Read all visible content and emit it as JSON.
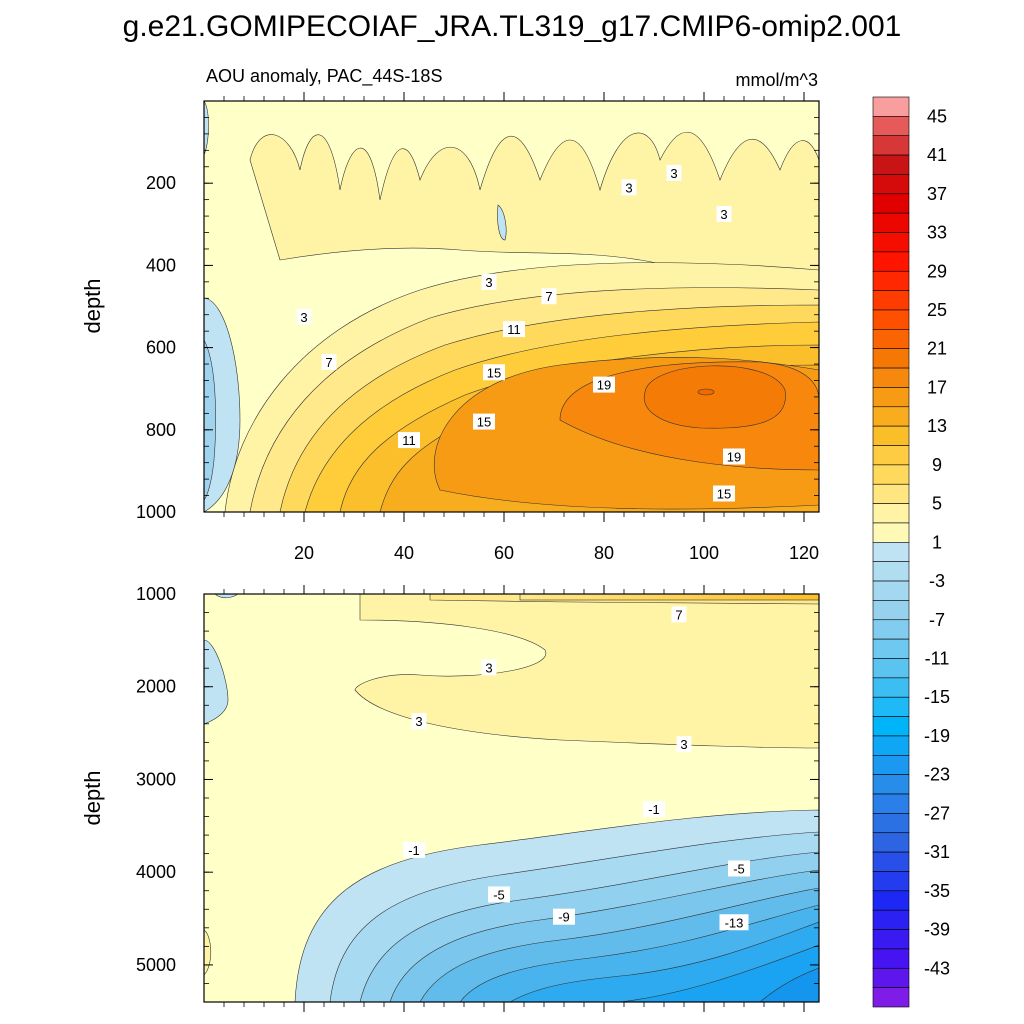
{
  "title": "g.e21.GOMIPECOIAF_JRA.TL319_g17.CMIP6-omip2.001",
  "chart_data": {
    "type": "contour",
    "variable": "AOU anomaly",
    "region": "PAC_44S-18S",
    "subtitle_left": "AOU anomaly, PAC_44S-18S",
    "units": "mmol/m^3",
    "colorbar": {
      "levels": [
        -45,
        -43,
        -41,
        -39,
        -37,
        -35,
        -33,
        -31,
        -29,
        -27,
        -25,
        -23,
        -21,
        -19,
        -17,
        -15,
        -13,
        -11,
        -9,
        -7,
        -5,
        -3,
        -1,
        1,
        3,
        5,
        7,
        9,
        11,
        13,
        15,
        17,
        19,
        21,
        23,
        25,
        27,
        29,
        31,
        33,
        35,
        37,
        39,
        41,
        43,
        45
      ],
      "tick_labels": [
        "45",
        "41",
        "37",
        "33",
        "29",
        "25",
        "21",
        "17",
        "13",
        "9",
        "5",
        "1",
        "-3",
        "-7",
        "-11",
        "-15",
        "-19",
        "-23",
        "-27",
        "-31",
        "-35",
        "-39",
        "-43"
      ]
    },
    "panels": [
      {
        "name": "upper",
        "ylabel": "depth",
        "ylim": [
          0,
          1000
        ],
        "y_ticks": [
          "200",
          "400",
          "600",
          "800",
          "1000"
        ],
        "x_ticks": [
          "20",
          "40",
          "60",
          "80",
          "100",
          "120"
        ],
        "xlim": [
          0,
          123
        ],
        "contour_labels": [
          {
            "text": "3",
            "x": 85,
            "depth": 210
          },
          {
            "text": "3",
            "x": 94,
            "depth": 175
          },
          {
            "text": "3",
            "x": 104,
            "depth": 275
          },
          {
            "text": "3",
            "x": 57,
            "depth": 440
          },
          {
            "text": "7",
            "x": 69,
            "depth": 475
          },
          {
            "text": "3",
            "x": 20,
            "depth": 525
          },
          {
            "text": "11",
            "x": 62,
            "depth": 555
          },
          {
            "text": "7",
            "x": 25,
            "depth": 635
          },
          {
            "text": "15",
            "x": 58,
            "depth": 660
          },
          {
            "text": "19",
            "x": 80,
            "depth": 690
          },
          {
            "text": "15",
            "x": 56,
            "depth": 780
          },
          {
            "text": "11",
            "x": 41,
            "depth": 825
          },
          {
            "text": "19",
            "x": 106,
            "depth": 865
          },
          {
            "text": "15",
            "x": 104,
            "depth": 955
          }
        ]
      },
      {
        "name": "lower",
        "ylabel": "depth",
        "ylim": [
          1000,
          5400
        ],
        "y_ticks": [
          "1000",
          "2000",
          "3000",
          "4000",
          "5000"
        ],
        "xlim": [
          0,
          123
        ],
        "contour_labels": [
          {
            "text": "7",
            "x": 95,
            "depth": 1220
          },
          {
            "text": "3",
            "x": 57,
            "depth": 1790
          },
          {
            "text": "3",
            "x": 43,
            "depth": 2370
          },
          {
            "text": "3",
            "x": 96,
            "depth": 2620
          },
          {
            "text": "-1",
            "x": 90,
            "depth": 3320
          },
          {
            "text": "-1",
            "x": 42,
            "depth": 3760
          },
          {
            "text": "-5",
            "x": 107,
            "depth": 3960
          },
          {
            "text": "-5",
            "x": 59,
            "depth": 4240
          },
          {
            "text": "-9",
            "x": 72,
            "depth": 4480
          },
          {
            "text": "-13",
            "x": 106,
            "depth": 4540
          }
        ]
      }
    ]
  }
}
